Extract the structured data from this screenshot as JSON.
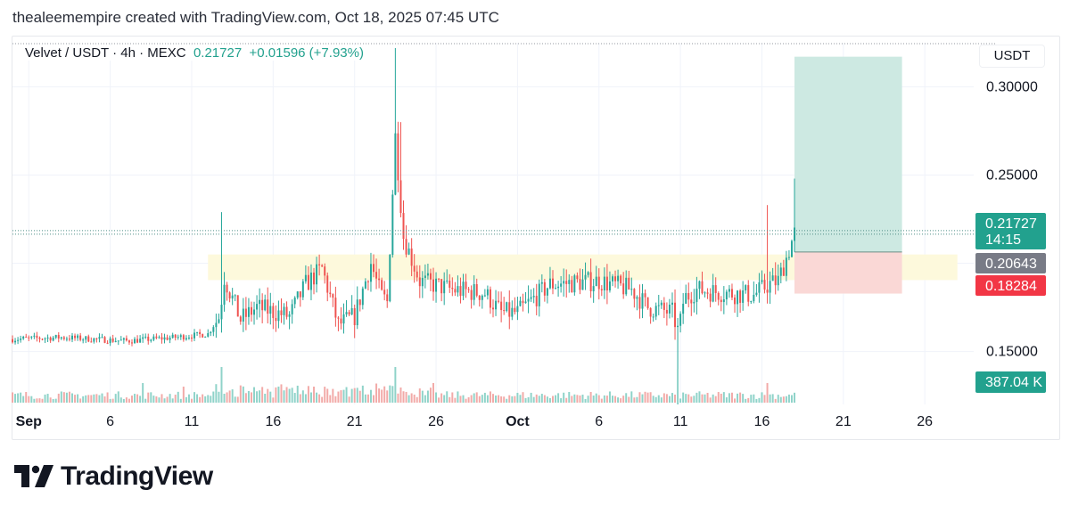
{
  "header": {
    "caption": "thealeemempire created with TradingView.com, Oct 18, 2025 07:45 UTC"
  },
  "legend": {
    "symbol": "Velvet / USDT · 4h · MEXC",
    "last": "0.21727",
    "change": "+0.01596 (+7.93%)"
  },
  "axis_unit": "USDT",
  "brand": {
    "name": "TradingView"
  },
  "colors": {
    "up": "#26a69a",
    "down": "#ef5350",
    "target_zone": "#cde9e2",
    "stop_zone": "#fad8d6",
    "support_zone": "#fdf9dc",
    "price_label": "#22a18e",
    "entry_label": "#787b86",
    "stop_label": "#f23645"
  },
  "chart_data": {
    "type": "candlestick",
    "timeframe": "4h",
    "y_ticks": [
      "0.30000",
      "0.25000",
      "0.15000"
    ],
    "y_tick_values": [
      0.3,
      0.25,
      0.15
    ],
    "ylim": [
      0.12,
      0.325
    ],
    "x_ticks": [
      {
        "label": "Sep",
        "date": "2025-09-01"
      },
      {
        "label": "6",
        "date": "2025-09-06"
      },
      {
        "label": "11",
        "date": "2025-09-11"
      },
      {
        "label": "16",
        "date": "2025-09-16"
      },
      {
        "label": "21",
        "date": "2025-09-21"
      },
      {
        "label": "26",
        "date": "2025-09-26"
      },
      {
        "label": "Oct",
        "date": "2025-10-01"
      },
      {
        "label": "6",
        "date": "2025-10-06"
      },
      {
        "label": "11",
        "date": "2025-10-11"
      },
      {
        "label": "16",
        "date": "2025-10-16"
      },
      {
        "label": "21",
        "date": "2025-10-21"
      },
      {
        "label": "26",
        "date": "2025-10-26"
      }
    ],
    "xlim": [
      "2025-08-31",
      "2025-10-29"
    ],
    "price_labels": {
      "last": {
        "value": "0.21727",
        "countdown": "14:15"
      },
      "entry": "0.20643",
      "stop": "0.18284",
      "volume": "387.04 K"
    },
    "zones": {
      "support": {
        "from": "2025-09-12",
        "to": "2025-10-28",
        "low": 0.1905,
        "high": 0.205
      },
      "target": {
        "from": "2025-10-18",
        "to": "2025-10-24.6",
        "low": 0.20643,
        "high": 0.3171
      },
      "stop": {
        "from": "2025-10-18",
        "to": "2025-10-24.6",
        "low": 0.18284,
        "high": 0.20643
      }
    },
    "anchors": [
      {
        "date": "2025-08-31",
        "price": 0.157
      },
      {
        "date": "2025-09-03",
        "price": 0.158
      },
      {
        "date": "2025-09-07",
        "price": 0.156
      },
      {
        "date": "2025-09-10",
        "price": 0.158
      },
      {
        "date": "2025-09-12",
        "price": 0.16
      },
      {
        "date": "2025-09-12.7",
        "price": 0.17
      },
      {
        "date": "2025-09-13",
        "price": 0.192
      },
      {
        "date": "2025-09-14",
        "price": 0.168
      },
      {
        "date": "2025-09-15",
        "price": 0.175
      },
      {
        "date": "2025-09-17",
        "price": 0.17
      },
      {
        "date": "2025-09-18",
        "price": 0.188
      },
      {
        "date": "2025-09-19",
        "price": 0.197
      },
      {
        "date": "2025-09-20",
        "price": 0.165
      },
      {
        "date": "2025-09-21",
        "price": 0.17
      },
      {
        "date": "2025-09-22",
        "price": 0.2
      },
      {
        "date": "2025-09-22.6",
        "price": 0.182
      },
      {
        "date": "2025-09-23",
        "price": 0.178
      },
      {
        "date": "2025-09-23.5",
        "price": 0.272
      },
      {
        "date": "2025-09-24",
        "price": 0.215
      },
      {
        "date": "2025-09-25",
        "price": 0.19
      },
      {
        "date": "2025-09-27",
        "price": 0.185
      },
      {
        "date": "2025-09-29",
        "price": 0.183
      },
      {
        "date": "2025-09-30",
        "price": 0.172
      },
      {
        "date": "2025-10-01",
        "price": 0.172
      },
      {
        "date": "2025-10-03",
        "price": 0.188
      },
      {
        "date": "2025-10-06",
        "price": 0.19
      },
      {
        "date": "2025-10-08",
        "price": 0.185
      },
      {
        "date": "2025-10-09",
        "price": 0.175
      },
      {
        "date": "2025-10-10.5",
        "price": 0.172
      },
      {
        "date": "2025-10-10.9",
        "price": 0.16
      },
      {
        "date": "2025-10-11.2",
        "price": 0.18
      },
      {
        "date": "2025-10-12",
        "price": 0.185
      },
      {
        "date": "2025-10-14",
        "price": 0.183
      },
      {
        "date": "2025-10-15.5",
        "price": 0.182
      },
      {
        "date": "2025-10-16.4",
        "price": 0.188
      },
      {
        "date": "2025-10-17",
        "price": 0.19
      },
      {
        "date": "2025-10-17.5",
        "price": 0.203
      },
      {
        "date": "2025-10-18",
        "price": 0.217
      }
    ],
    "spikes": [
      {
        "date": "2025-09-12.8",
        "high": 0.229
      },
      {
        "date": "2025-09-23.5",
        "high": 0.322
      },
      {
        "date": "2025-09-23.8",
        "high": 0.28
      },
      {
        "date": "2025-10-10.9",
        "low": 0.12
      },
      {
        "date": "2025-10-16.3",
        "high": 0.233
      },
      {
        "date": "2025-10-18",
        "high": 0.248
      }
    ],
    "volume_spikes": [
      {
        "date": "2025-09-12.8",
        "value": 1.0
      },
      {
        "date": "2025-09-23.5",
        "value": 1.0
      },
      {
        "date": "2025-10-10.9",
        "value": 0.95
      },
      {
        "date": "2025-10-16.3",
        "value": 0.55
      },
      {
        "date": "2025-09-08",
        "value": 0.55
      },
      {
        "date": "2025-09-10.5",
        "value": 0.45
      }
    ]
  }
}
